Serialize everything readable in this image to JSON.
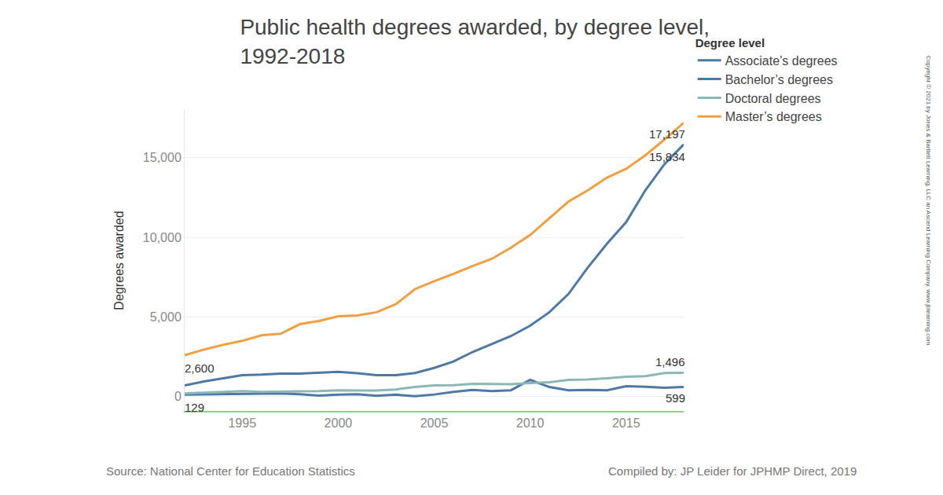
{
  "chart_data": {
    "type": "line",
    "title": "Public health degrees awarded, by degree level,\n1992-2018",
    "y_label": "Degrees awarded",
    "legend_title": "Degree level",
    "source": "Source: National Center for Education Statistics",
    "credit": "Compiled by: JP Leider for JPHMP Direct, 2019",
    "copyright": "Copyright © 2021 by Jones & Bartlett Learning, LLC an Ascend Learning Company. www.jblearning.com",
    "x": [
      1992,
      1993,
      1994,
      1995,
      1996,
      1997,
      1998,
      1999,
      2000,
      2001,
      2002,
      2003,
      2004,
      2005,
      2006,
      2007,
      2008,
      2009,
      2010,
      2011,
      2012,
      2013,
      2014,
      2015,
      2016,
      2017,
      2018
    ],
    "series": [
      {
        "name": "Associate’s degrees",
        "color": "#4e79a7",
        "values": [
          129,
          150,
          150,
          180,
          180,
          200,
          150,
          60,
          130,
          150,
          50,
          120,
          30,
          130,
          300,
          420,
          350,
          400,
          1050,
          600,
          400,
          420,
          400,
          650,
          620,
          560,
          599
        ],
        "value_labels": [
          "129",
          null,
          null,
          null,
          null,
          null,
          null,
          null,
          null,
          null,
          null,
          null,
          null,
          null,
          null,
          null,
          null,
          null,
          null,
          null,
          null,
          null,
          null,
          null,
          null,
          null,
          "599"
        ]
      },
      {
        "name": "Bachelor’s degrees",
        "color": "#4e79a7",
        "values": [
          700,
          950,
          1150,
          1350,
          1380,
          1450,
          1450,
          1520,
          1560,
          1470,
          1350,
          1340,
          1480,
          1800,
          2200,
          2800,
          3300,
          3800,
          4450,
          5300,
          6450,
          8100,
          9600,
          10950,
          12950,
          14600,
          15834
        ],
        "value_labels": [
          null,
          null,
          null,
          null,
          null,
          null,
          null,
          null,
          null,
          null,
          null,
          null,
          null,
          null,
          null,
          null,
          null,
          null,
          null,
          null,
          null,
          null,
          null,
          null,
          null,
          null,
          "15,834"
        ]
      },
      {
        "name": "Doctoral degrees",
        "color": "#8ab8b4",
        "values": [
          200,
          250,
          300,
          350,
          300,
          300,
          330,
          350,
          400,
          380,
          380,
          450,
          600,
          700,
          720,
          800,
          780,
          780,
          850,
          900,
          1050,
          1080,
          1150,
          1250,
          1280,
          1480,
          1496
        ],
        "value_labels": [
          null,
          null,
          null,
          null,
          null,
          null,
          null,
          null,
          null,
          null,
          null,
          null,
          null,
          null,
          null,
          null,
          null,
          null,
          null,
          null,
          null,
          null,
          null,
          null,
          null,
          null,
          "1,496"
        ]
      },
      {
        "name": "Master’s degrees",
        "color": "#f0a040",
        "values": [
          2600,
          2950,
          3250,
          3500,
          3850,
          3950,
          4550,
          4750,
          5050,
          5100,
          5300,
          5800,
          6750,
          7250,
          7700,
          8200,
          8650,
          9350,
          10150,
          11200,
          12250,
          12950,
          13750,
          14300,
          15150,
          16150,
          17197
        ],
        "value_labels": [
          "2,600",
          null,
          null,
          null,
          null,
          null,
          null,
          null,
          null,
          null,
          null,
          null,
          null,
          null,
          null,
          null,
          null,
          null,
          null,
          null,
          null,
          null,
          null,
          null,
          null,
          null,
          "17,197"
        ]
      }
    ],
    "xlim": [
      1992,
      2018
    ],
    "xticks": [
      1995,
      2000,
      2005,
      2010,
      2015
    ],
    "ylim": [
      -900,
      18000
    ],
    "yticks": [
      0,
      {
        "value": 5000,
        "label": "5,000"
      },
      {
        "value": 10000,
        "label": "10,000"
      },
      {
        "value": 15000,
        "label": "15,000"
      }
    ],
    "grid": true,
    "legend": "top right",
    "data_labels": true
  }
}
